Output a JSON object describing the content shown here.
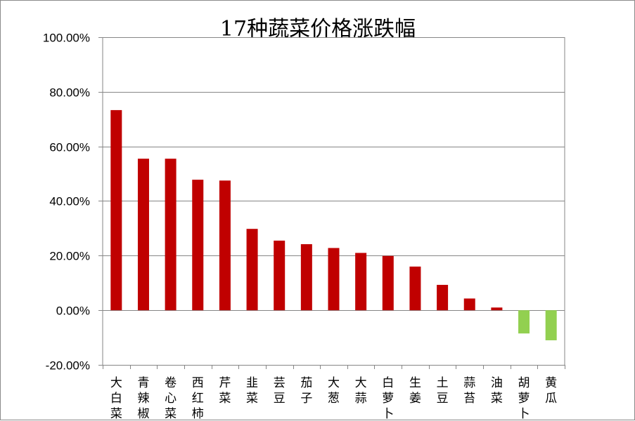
{
  "chart_data": {
    "type": "bar",
    "title": "17种蔬菜价格涨跌幅",
    "xlabel": "",
    "ylabel": "",
    "ylim": [
      -0.2,
      1.0
    ],
    "yticks": [
      1.0,
      0.8,
      0.6,
      0.4,
      0.2,
      0.0,
      -0.2
    ],
    "ytick_labels": [
      "100.00%",
      "80.00%",
      "60.00%",
      "40.00%",
      "20.00%",
      "0.00%",
      "-20.00%"
    ],
    "grid": true,
    "legend": "none",
    "categories": [
      "大白菜",
      "青辣椒",
      "卷心菜",
      "西红柿",
      "芹菜",
      "韭菜",
      "芸豆",
      "茄子",
      "大葱",
      "大蒜",
      "白萝卜",
      "生姜",
      "土豆",
      "蒜苔",
      "油菜",
      "胡萝卜",
      "黄瓜"
    ],
    "values": [
      0.733,
      0.555,
      0.555,
      0.478,
      0.475,
      0.298,
      0.255,
      0.242,
      0.228,
      0.21,
      0.199,
      0.16,
      0.093,
      0.043,
      0.01,
      -0.085,
      -0.11
    ],
    "colors": {
      "positive": "#c00000",
      "negative": "#92d050",
      "gridline": "#868686",
      "axis": "#868686"
    }
  }
}
